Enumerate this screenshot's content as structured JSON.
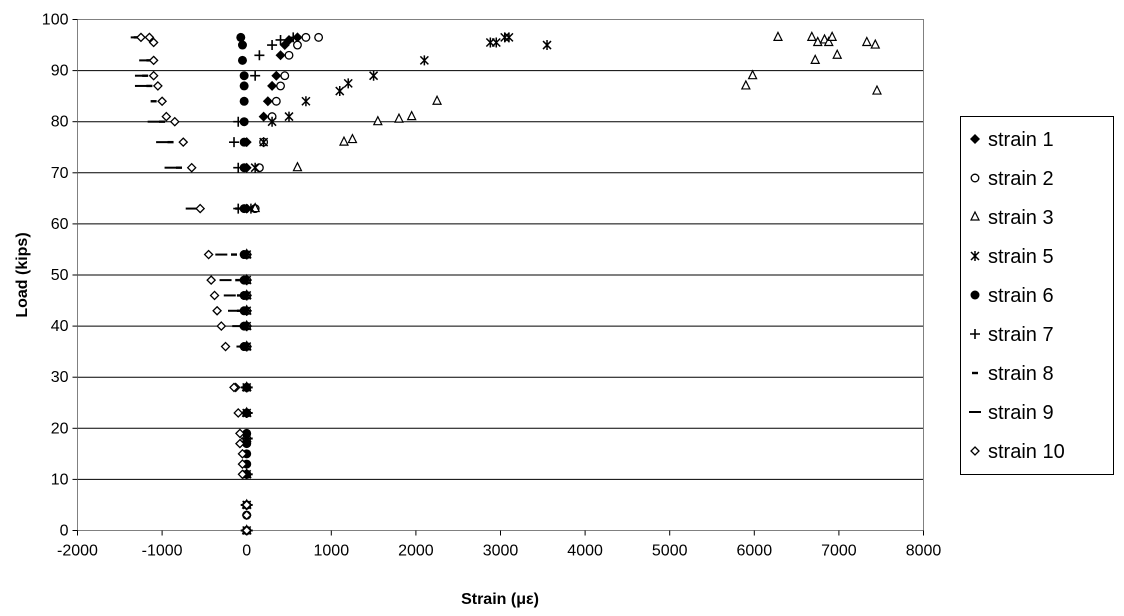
{
  "chart_data": {
    "type": "scatter",
    "title": "",
    "xlabel": "Strain (με)",
    "ylabel": "Load (kips)",
    "xlim": [
      -2000,
      8000
    ],
    "ylim": [
      0,
      100
    ],
    "xticks": [
      -2000,
      -1000,
      0,
      1000,
      2000,
      3000,
      4000,
      5000,
      6000,
      7000,
      8000
    ],
    "yticks": [
      0,
      10,
      20,
      30,
      40,
      50,
      60,
      70,
      80,
      90,
      100
    ],
    "grid": "horizontal",
    "legend_position": "right",
    "series": [
      {
        "name": "strain 1",
        "marker": "diamond-filled",
        "points": [
          [
            0,
            0
          ],
          [
            0,
            5
          ],
          [
            0,
            11
          ],
          [
            0,
            18
          ],
          [
            0,
            23
          ],
          [
            0,
            28
          ],
          [
            0,
            36
          ],
          [
            0,
            40
          ],
          [
            0,
            43
          ],
          [
            0,
            46
          ],
          [
            0,
            49
          ],
          [
            0,
            54
          ],
          [
            0,
            63
          ],
          [
            0,
            71
          ],
          [
            0,
            76
          ],
          [
            200,
            81
          ],
          [
            250,
            84
          ],
          [
            300,
            87
          ],
          [
            350,
            89
          ],
          [
            400,
            93
          ],
          [
            450,
            95
          ],
          [
            500,
            96
          ],
          [
            600,
            96.5
          ]
        ]
      },
      {
        "name": "strain 2",
        "marker": "circle-open",
        "points": [
          [
            0,
            0
          ],
          [
            0,
            5
          ],
          [
            0,
            11
          ],
          [
            0,
            18
          ],
          [
            0,
            23
          ],
          [
            0,
            28
          ],
          [
            0,
            36
          ],
          [
            0,
            40
          ],
          [
            0,
            43
          ],
          [
            0,
            46
          ],
          [
            0,
            49
          ],
          [
            0,
            54
          ],
          [
            100,
            63
          ],
          [
            150,
            71
          ],
          [
            200,
            76
          ],
          [
            300,
            81
          ],
          [
            350,
            84
          ],
          [
            400,
            87
          ],
          [
            450,
            89
          ],
          [
            500,
            93
          ],
          [
            600,
            95
          ],
          [
            700,
            96.5
          ],
          [
            850,
            96.5
          ]
        ]
      },
      {
        "name": "strain 3",
        "marker": "triangle-open",
        "points": [
          [
            0,
            0
          ],
          [
            0,
            5
          ],
          [
            0,
            11
          ],
          [
            0,
            18
          ],
          [
            0,
            23
          ],
          [
            0,
            28
          ],
          [
            0,
            36
          ],
          [
            0,
            40
          ],
          [
            0,
            43
          ],
          [
            0,
            46
          ],
          [
            0,
            49
          ],
          [
            0,
            54
          ],
          [
            100,
            63
          ],
          [
            600,
            71
          ],
          [
            1150,
            76
          ],
          [
            1250,
            76.5
          ],
          [
            1550,
            80
          ],
          [
            1800,
            80.5
          ],
          [
            1950,
            81
          ],
          [
            2250,
            84
          ],
          [
            5900,
            87
          ],
          [
            5980,
            89
          ],
          [
            6280,
            96.5
          ],
          [
            6680,
            96.5
          ],
          [
            6720,
            92
          ],
          [
            6750,
            95.5
          ],
          [
            6830,
            96
          ],
          [
            6880,
            95.5
          ],
          [
            6920,
            96.5
          ],
          [
            6980,
            93
          ],
          [
            7330,
            95.5
          ],
          [
            7430,
            95
          ],
          [
            7450,
            86
          ]
        ]
      },
      {
        "name": "strain 5",
        "marker": "asterisk",
        "points": [
          [
            0,
            0
          ],
          [
            0,
            5
          ],
          [
            0,
            11
          ],
          [
            0,
            18
          ],
          [
            0,
            23
          ],
          [
            0,
            28
          ],
          [
            0,
            36
          ],
          [
            0,
            40
          ],
          [
            0,
            43
          ],
          [
            0,
            46
          ],
          [
            0,
            49
          ],
          [
            0,
            54
          ],
          [
            50,
            63
          ],
          [
            100,
            71
          ],
          [
            200,
            76
          ],
          [
            300,
            80
          ],
          [
            500,
            81
          ],
          [
            700,
            84
          ],
          [
            1100,
            86
          ],
          [
            1200,
            87.5
          ],
          [
            1500,
            89
          ],
          [
            2100,
            92
          ],
          [
            2880,
            95.5
          ],
          [
            2950,
            95.5
          ],
          [
            3050,
            96.5
          ],
          [
            3100,
            96.5
          ],
          [
            3550,
            95
          ]
        ]
      },
      {
        "name": "strain 6",
        "marker": "circle-filled",
        "points": [
          [
            0,
            0
          ],
          [
            0,
            3
          ],
          [
            0,
            5
          ],
          [
            0,
            11
          ],
          [
            0,
            13
          ],
          [
            0,
            15
          ],
          [
            0,
            17
          ],
          [
            0,
            19
          ],
          [
            0,
            23
          ],
          [
            0,
            28
          ],
          [
            -30,
            36
          ],
          [
            -30,
            40
          ],
          [
            -30,
            43
          ],
          [
            -30,
            46
          ],
          [
            -30,
            49
          ],
          [
            -30,
            54
          ],
          [
            -30,
            63
          ],
          [
            -30,
            71
          ],
          [
            -30,
            76
          ],
          [
            -30,
            80
          ],
          [
            -30,
            84
          ],
          [
            -30,
            87
          ],
          [
            -30,
            89
          ],
          [
            -50,
            92
          ],
          [
            -50,
            95
          ],
          [
            -70,
            96.5
          ]
        ]
      },
      {
        "name": "strain 7",
        "marker": "plus",
        "points": [
          [
            0,
            0
          ],
          [
            0,
            5
          ],
          [
            0,
            11
          ],
          [
            0,
            18
          ],
          [
            0,
            23
          ],
          [
            0,
            28
          ],
          [
            0,
            36
          ],
          [
            0,
            40
          ],
          [
            0,
            43
          ],
          [
            0,
            46
          ],
          [
            0,
            49
          ],
          [
            0,
            54
          ],
          [
            -100,
            63
          ],
          [
            -100,
            71
          ],
          [
            -150,
            76
          ],
          [
            -100,
            80
          ],
          [
            100,
            89
          ],
          [
            150,
            93
          ],
          [
            300,
            95
          ],
          [
            400,
            96
          ],
          [
            550,
            96.5
          ]
        ]
      },
      {
        "name": "strain 8",
        "marker": "dash",
        "points": [
          [
            0,
            0
          ],
          [
            0,
            5
          ],
          [
            0,
            11
          ],
          [
            0,
            18
          ],
          [
            0,
            23
          ],
          [
            0,
            28
          ],
          [
            -50,
            36
          ],
          [
            -50,
            40
          ],
          [
            -80,
            43
          ],
          [
            -80,
            46
          ],
          [
            -100,
            49
          ],
          [
            -150,
            54
          ],
          [
            -100,
            63
          ],
          [
            -800,
            71
          ],
          [
            -900,
            76
          ],
          [
            -1000,
            80
          ],
          [
            -1100,
            84
          ],
          [
            -1150,
            87
          ],
          [
            -1200,
            89
          ],
          [
            -1150,
            92
          ],
          [
            -1300,
            96.5
          ]
        ]
      },
      {
        "name": "strain 9",
        "marker": "dash-wide",
        "points": [
          [
            0,
            0
          ],
          [
            0,
            5
          ],
          [
            0,
            11
          ],
          [
            0,
            18
          ],
          [
            0,
            23
          ],
          [
            0,
            28
          ],
          [
            -50,
            36
          ],
          [
            -100,
            40
          ],
          [
            -150,
            43
          ],
          [
            -200,
            46
          ],
          [
            -250,
            49
          ],
          [
            -300,
            54
          ],
          [
            -650,
            63
          ],
          [
            -900,
            71
          ],
          [
            -1000,
            76
          ],
          [
            -1100,
            80
          ],
          [
            -1250,
            87
          ],
          [
            -1250,
            89
          ],
          [
            -1200,
            92
          ],
          [
            -1300,
            96.5
          ]
        ]
      },
      {
        "name": "strain 10",
        "marker": "diamond-open",
        "points": [
          [
            0,
            0
          ],
          [
            0,
            3
          ],
          [
            0,
            5
          ],
          [
            -50,
            11
          ],
          [
            -50,
            13
          ],
          [
            -50,
            15
          ],
          [
            -80,
            17
          ],
          [
            -80,
            19
          ],
          [
            -100,
            23
          ],
          [
            -130,
            28
          ],
          [
            -150,
            28
          ],
          [
            -250,
            36
          ],
          [
            -300,
            40
          ],
          [
            -350,
            43
          ],
          [
            -380,
            46
          ],
          [
            -420,
            49
          ],
          [
            -450,
            54
          ],
          [
            -550,
            63
          ],
          [
            -650,
            71
          ],
          [
            -750,
            76
          ],
          [
            -850,
            80
          ],
          [
            -950,
            81
          ],
          [
            -1000,
            84
          ],
          [
            -1050,
            87
          ],
          [
            -1100,
            89
          ],
          [
            -1100,
            92
          ],
          [
            -1100,
            95.5
          ],
          [
            -1150,
            96.5
          ],
          [
            -1250,
            96.5
          ]
        ]
      }
    ]
  }
}
